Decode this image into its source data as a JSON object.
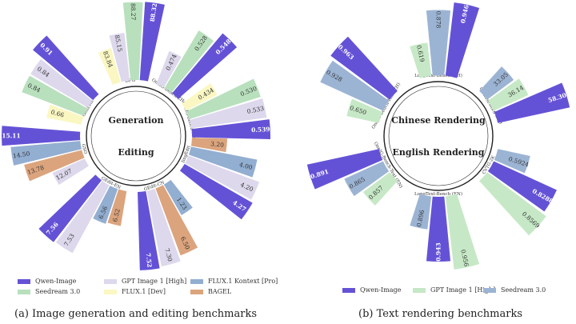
{
  "colors": {
    "Qwen-Image": "#6452d6",
    "GPT Image 1 [High]": "#ddd8ec",
    "FLUX.1 Kontext [Pro]": "#92aed1",
    "Seedream 3.0": "#b8e0bd",
    "FLUX.1 [Dev]": "#fbf7c2",
    "BAGEL": "#dba47d",
    "Seedream 3.0 (b)": "#9cb4d4",
    "GPT Image 1 [High] (b)": "#c6e8c6"
  },
  "captions": {
    "a": "(a) Image generation and editing benchmarks",
    "b": "(b) Text rendering benchmarks"
  },
  "legend_a": [
    {
      "label": "Qwen-Image",
      "color": "#6452d6"
    },
    {
      "label": "GPT Image 1 [High]",
      "color": "#ddd8ec"
    },
    {
      "label": "FLUX.1 Kontext [Pro]",
      "color": "#92aed1"
    },
    {
      "label": "Seedream 3.0",
      "color": "#b8e0bd"
    },
    {
      "label": "FLUX.1 [Dev]",
      "color": "#fbf7c2"
    },
    {
      "label": "BAGEL",
      "color": "#dba47d"
    }
  ],
  "legend_b": [
    {
      "label": "Qwen-Image",
      "color": "#6452d6"
    },
    {
      "label": "GPT Image 1 [High]",
      "color": "#c6e8c6"
    },
    {
      "label": "Seedream 3.0",
      "color": "#9cb4d4"
    }
  ],
  "chart_data": [
    {
      "type": "bar",
      "title": "(a) Image generation and editing benchmarks",
      "center_labels": [
        "Generation",
        "Editing"
      ],
      "benchmarks": [
        {
          "name": "DPG",
          "angle": -6,
          "bars": [
            {
              "model": "FLUX.1 [Dev]",
              "value": 83.84,
              "label": "83.84"
            },
            {
              "model": "GPT Image 1 [High]",
              "value": 85.15,
              "label": "85.15"
            },
            {
              "model": "Seedream 3.0",
              "value": 88.27,
              "label": "88.27"
            },
            {
              "model": "Qwen-Image",
              "value": 88.32,
              "label": "88.32"
            }
          ]
        },
        {
          "name": "OneIG-Bench-ZH",
          "angle": 35,
          "bars": [
            {
              "model": "GPT Image 1 [High]",
              "value": 0.474,
              "label": "0.474"
            },
            {
              "model": "Seedream 3.0",
              "value": 0.528,
              "label": "0.528"
            },
            {
              "model": "Qwen-Image",
              "value": 0.548,
              "label": "0.548"
            }
          ]
        },
        {
          "name": "OneIG-Bench-EN",
          "angle": 73,
          "bars": [
            {
              "model": "FLUX.1 [Dev]",
              "value": 0.434,
              "label": "0.434"
            },
            {
              "model": "Seedream 3.0",
              "value": 0.53,
              "label": "0.530"
            },
            {
              "model": "GPT Image 1 [High]",
              "value": 0.533,
              "label": "0.533"
            },
            {
              "model": "Qwen-Image",
              "value": 0.539,
              "label": "0.539"
            }
          ]
        },
        {
          "name": "ImgEdit",
          "angle": 110,
          "bars": [
            {
              "model": "BAGEL",
              "value": 3.2,
              "label": "3.20"
            },
            {
              "model": "FLUX.1 Kontext [Pro]",
              "value": 4.0,
              "label": "4.00"
            },
            {
              "model": "GPT Image 1 [High]",
              "value": 4.2,
              "label": "4.20"
            },
            {
              "model": "Qwen-Image",
              "value": 4.27,
              "label": "4.27"
            }
          ]
        },
        {
          "name": "GEdit-CN",
          "angle": 160,
          "bars": [
            {
              "model": "FLUX.1 Kontext [Pro]",
              "value": 1.23,
              "label": "1.23"
            },
            {
              "model": "BAGEL",
              "value": 6.5,
              "label": "6.50"
            },
            {
              "model": "GPT Image 1 [High]",
              "value": 7.3,
              "label": "7.30"
            },
            {
              "model": "Qwen-Image",
              "value": 7.52,
              "label": "7.52"
            }
          ]
        },
        {
          "name": "GEdit-EN",
          "angle": 208,
          "bars": [
            {
              "model": "BAGEL",
              "value": 6.52,
              "label": "6.52"
            },
            {
              "model": "FLUX.1 Kontext [Pro]",
              "value": 6.56,
              "label": "6.56"
            },
            {
              "model": "GPT Image 1 [High]",
              "value": 7.53,
              "label": "7.53"
            },
            {
              "model": "Qwen-Image",
              "value": 7.56,
              "label": "7.56"
            }
          ]
        },
        {
          "name": "GSO",
          "angle": 256,
          "bars": [
            {
              "model": "GPT Image 1 [High]",
              "value": 12.07,
              "label": "12.07"
            },
            {
              "model": "BAGEL",
              "value": 13.78,
              "label": "13.78"
            },
            {
              "model": "FLUX.1 Kontext [Pro]",
              "value": 14.5,
              "label": "14.50"
            },
            {
              "model": "Qwen-Image",
              "value": 15.11,
              "label": "15.11"
            }
          ]
        },
        {
          "name": "GenEval",
          "angle": 300,
          "bars": [
            {
              "model": "FLUX.1 [Dev]",
              "value": 0.66,
              "label": "0.66"
            },
            {
              "model": "Seedream 3.0",
              "value": 0.84,
              "label": "0.84"
            },
            {
              "model": "GPT Image 1 [High]",
              "value": 0.84,
              "label": "0.84"
            },
            {
              "model": "Qwen-Image",
              "value": 0.91,
              "label": "0.91"
            }
          ]
        }
      ]
    },
    {
      "type": "bar",
      "title": "(b) Text rendering benchmarks",
      "center_labels": [
        "Chinese Rendering",
        "English Rendering"
      ],
      "benchmarks": [
        {
          "name": "LongText-Bench (ZH)",
          "angle": 0,
          "bars": [
            {
              "model": "GPT Image 1 [High]",
              "value": 0.619,
              "label": "0.619"
            },
            {
              "model": "Seedream 3.0",
              "value": 0.878,
              "label": "0.878"
            },
            {
              "model": "Qwen-Image",
              "value": 0.946,
              "label": "0.946"
            }
          ]
        },
        {
          "name": "ChineseWord (ZH)",
          "angle": 60,
          "bars": [
            {
              "model": "Seedream 3.0",
              "value": 33.05,
              "label": "33.05"
            },
            {
              "model": "GPT Image 1 [High]",
              "value": 36.14,
              "label": "36.14"
            },
            {
              "model": "Qwen-Image",
              "value": 58.3,
              "label": "58.30"
            }
          ]
        },
        {
          "name": "CVTG-2K",
          "angle": 120,
          "bars": [
            {
              "model": "Seedream 3.0",
              "value": 0.5924,
              "label": "0.5924"
            },
            {
              "model": "Qwen-Image",
              "value": 0.8288,
              "label": "0.8288"
            },
            {
              "model": "GPT Image 1 [High]",
              "value": 0.8569,
              "label": "0.8569"
            }
          ]
        },
        {
          "name": "LongText-Bench (EN)",
          "angle": 180,
          "bars": [
            {
              "model": "GPT Image 1 [High]",
              "value": 0.956,
              "label": "0.956"
            },
            {
              "model": "Qwen-Image",
              "value": 0.943,
              "label": "0.943"
            },
            {
              "model": "Seedream 3.0",
              "value": 0.896,
              "label": "0.896"
            }
          ]
        },
        {
          "name": "OneIG-Bench-Text (EN)",
          "angle": 240,
          "bars": [
            {
              "model": "GPT Image 1 [High]",
              "value": 0.857,
              "label": "0.857"
            },
            {
              "model": "Seedream 3.0",
              "value": 0.865,
              "label": "0.865"
            },
            {
              "model": "Qwen-Image",
              "value": 0.891,
              "label": "0.891"
            }
          ]
        },
        {
          "name": "OneIG-Bench-Text (ZH)",
          "angle": 300,
          "bars": [
            {
              "model": "GPT Image 1 [High]",
              "value": 0.65,
              "label": "0.650"
            },
            {
              "model": "Seedream 3.0",
              "value": 0.928,
              "label": "0.928"
            },
            {
              "model": "Qwen-Image",
              "value": 0.963,
              "label": "0.963"
            }
          ]
        }
      ]
    }
  ]
}
